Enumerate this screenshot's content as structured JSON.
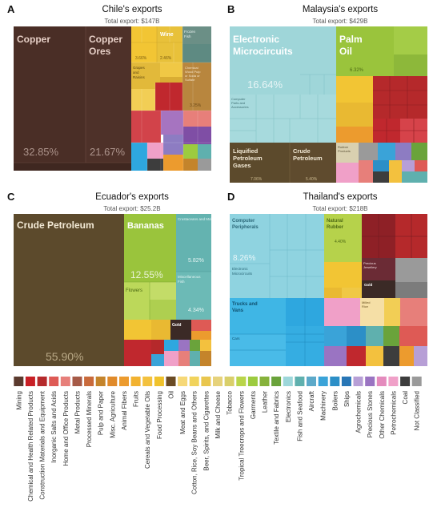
{
  "panels": [
    {
      "letter": "A",
      "title": "Chile's exports",
      "total": "Total export: $147B",
      "chart_data": {
        "type": "treemap",
        "items": [
          {
            "label": "Copper",
            "pct": "32.85%",
            "color": "#4a2e26"
          },
          {
            "label": "Copper Ores",
            "pct": "21.67%",
            "color": "#4a2e26"
          },
          {
            "label": "",
            "pct": "3.66%",
            "color": "#f2c534"
          },
          {
            "label": "Wine",
            "pct": "2.46%",
            "color": "#e8c13a"
          },
          {
            "label": "Frozen Fish",
            "pct": "",
            "color": "#6b8f86"
          },
          {
            "label": "Grapes and Raisins",
            "pct": "",
            "color": "#e2b93a"
          },
          {
            "label": "Chemical Wood Pulp or Soda or Sulfate",
            "pct": "3.25%",
            "color": "#b8863e"
          }
        ]
      }
    },
    {
      "letter": "B",
      "title": "Malaysia's exports",
      "total": "Total export: $429B",
      "chart_data": {
        "type": "treemap",
        "items": [
          {
            "label": "Electronic Microcircuits",
            "pct": "16.64%",
            "color": "#9fd6d9"
          },
          {
            "label": "Palm Oil",
            "pct": "6.32%",
            "color": "#9ac43c"
          },
          {
            "label": "Computer Parts and Accessories",
            "pct": "",
            "color": "#9fd6d9"
          },
          {
            "label": "Liquified Petroleum Gases",
            "pct": "7.06%",
            "color": "#5c4a2c"
          },
          {
            "label": "Crude Petroleum",
            "pct": "5.40%",
            "color": "#5c4a2c"
          },
          {
            "label": "Rubber Products",
            "pct": "",
            "color": "#d9d0b0"
          }
        ]
      }
    },
    {
      "letter": "C",
      "title": "Ecuador's exports",
      "total": "Total export: $25.2B",
      "chart_data": {
        "type": "treemap",
        "items": [
          {
            "label": "Crude Petroleum",
            "pct": "55.90%",
            "color": "#5c4a2c"
          },
          {
            "label": "Bananas",
            "pct": "12.55%",
            "color": "#9ac43c"
          },
          {
            "label": "Crustaceans and Molluscs",
            "pct": "5.82%",
            "color": "#64b3b0"
          },
          {
            "label": "Miscellaneous Fish",
            "pct": "4.34%",
            "color": "#64b3b0"
          },
          {
            "label": "Flowers",
            "pct": "",
            "color": "#bcd85a"
          },
          {
            "label": "Gold",
            "pct": "",
            "color": "#3b2a26"
          }
        ]
      }
    },
    {
      "letter": "D",
      "title": "Thailand's exports",
      "total": "Total export: $218B",
      "chart_data": {
        "type": "treemap",
        "items": [
          {
            "label": "Computer Peripherals",
            "pct": "8.26%",
            "color": "#8fd3e0"
          },
          {
            "label": "Electronic Microcircuits",
            "pct": "",
            "color": "#8fd3e0"
          },
          {
            "label": "Natural Rubber",
            "pct": "4.40%",
            "color": "#b6d24b"
          },
          {
            "label": "Trucks and Vans",
            "pct": "",
            "color": "#3fb6e5"
          },
          {
            "label": "Cars",
            "pct": "",
            "color": "#3fb6e5"
          },
          {
            "label": "Precious Jewellery",
            "pct": "",
            "color": "#6b2b35"
          },
          {
            "label": "Gold",
            "pct": "",
            "color": "#3b2a26"
          },
          {
            "label": "Milled Rice",
            "pct": "",
            "color": "#f5dfa6"
          }
        ]
      }
    }
  ],
  "legend": {
    "items": [
      {
        "label": "Mining",
        "color": "#5b3a2e"
      },
      {
        "label": "Chemical and Health Related Products",
        "color": "#c81f25"
      },
      {
        "label": "Construction Materials and Equipment",
        "color": "#b5292b"
      },
      {
        "label": "Inorganic Salts and Acids",
        "color": "#de5a55"
      },
      {
        "label": "Home and Office Products",
        "color": "#e77f7a"
      },
      {
        "label": "Metal Products",
        "color": "#a65a47"
      },
      {
        "label": "Processed Minerals",
        "color": "#c96a3b"
      },
      {
        "label": "Pulp and Paper",
        "color": "#c4842b"
      },
      {
        "label": "Misc. Agriculture",
        "color": "#e08a2a"
      },
      {
        "label": "Animal Fibers",
        "color": "#ec9b2e"
      },
      {
        "label": "Fruits",
        "color": "#f2b230"
      },
      {
        "label": "Cereals and Vegetable Oils",
        "color": "#f3c13e"
      },
      {
        "label": "Food Processing",
        "color": "#f0c22c"
      },
      {
        "label": "Oil",
        "color": "#6a4b24"
      },
      {
        "label": "Meat and Eggs",
        "color": "#f6d877"
      },
      {
        "label": "Cotton, Rice, Soy Beans and Others",
        "color": "#f1d35c"
      },
      {
        "label": "Beer, Spirits, and Cigarettes",
        "color": "#e9c64e"
      },
      {
        "label": "Milk and Cheese",
        "color": "#e6d27b"
      },
      {
        "label": "Tobacco",
        "color": "#d9cf6a"
      },
      {
        "label": "Tropical Treecrops and Flowers",
        "color": "#b9d54a"
      },
      {
        "label": "Garments",
        "color": "#9ccb3f"
      },
      {
        "label": "Leather",
        "color": "#86b23b"
      },
      {
        "label": "Textile and Fabrics",
        "color": "#6aa33b"
      },
      {
        "label": "Electronics",
        "color": "#9dd7da"
      },
      {
        "label": "Fish and Seafood",
        "color": "#5fb0ae"
      },
      {
        "label": "Aircraft",
        "color": "#5ca9c9"
      },
      {
        "label": "Machinery",
        "color": "#3aa3d8"
      },
      {
        "label": "Boilers",
        "color": "#2c8fc7"
      },
      {
        "label": "Ships",
        "color": "#2876b6"
      },
      {
        "label": "Agrochemicals",
        "color": "#b79fd6"
      },
      {
        "label": "Precious Stones",
        "color": "#9a74c2"
      },
      {
        "label": "Other Chemicals",
        "color": "#e48bbd"
      },
      {
        "label": "Petrochemicals",
        "color": "#f0a0c8"
      },
      {
        "label": "Coal",
        "color": "#3d3d3d"
      },
      {
        "label": "Not Classified",
        "color": "#9a9a9a"
      }
    ]
  }
}
